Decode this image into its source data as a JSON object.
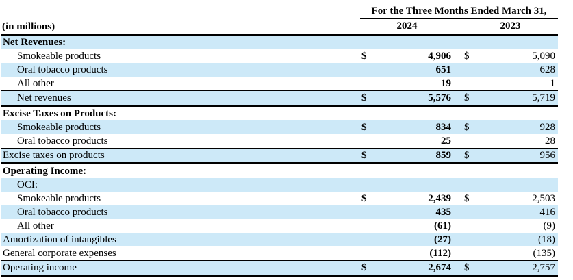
{
  "header": {
    "period_title": "For the Three Months Ended March 31,",
    "unit_label": "(in millions)",
    "year_2024": "2024",
    "year_2023": "2023"
  },
  "currency_symbol": "$",
  "colors": {
    "row_highlight": "#cde9f8",
    "rule": "#000000",
    "background": "#ffffff",
    "text": "#000000"
  },
  "rows": [
    {
      "kind": "section",
      "label": "Net Revenues:",
      "shaded": true,
      "indent": false,
      "dollar": false,
      "value_2024": "",
      "value_2023": ""
    },
    {
      "kind": "data",
      "label": "Smokeable products",
      "shaded": false,
      "indent": true,
      "dollar": true,
      "value_2024": "4,906",
      "value_2023": "5,090"
    },
    {
      "kind": "data",
      "label": "Oral tobacco products",
      "shaded": true,
      "indent": true,
      "dollar": false,
      "value_2024": "651",
      "value_2023": "628"
    },
    {
      "kind": "data",
      "label": "All other",
      "shaded": false,
      "indent": true,
      "dollar": false,
      "value_2024": "19",
      "value_2023": "1"
    },
    {
      "kind": "total",
      "label": "Net revenues",
      "shaded": true,
      "indent": true,
      "dollar": true,
      "value_2024": "5,576",
      "value_2023": "5,719"
    },
    {
      "kind": "section",
      "label": "Excise Taxes on Products:",
      "shaded": false,
      "indent": false,
      "dollar": false,
      "value_2024": "",
      "value_2023": ""
    },
    {
      "kind": "data",
      "label": "Smokeable products",
      "shaded": true,
      "indent": true,
      "dollar": true,
      "value_2024": "834",
      "value_2023": "928"
    },
    {
      "kind": "data",
      "label": "Oral tobacco products",
      "shaded": false,
      "indent": true,
      "dollar": false,
      "value_2024": "25",
      "value_2023": "28"
    },
    {
      "kind": "total",
      "label": "Excise taxes on products",
      "shaded": true,
      "indent": false,
      "dollar": true,
      "value_2024": "859",
      "value_2023": "956"
    },
    {
      "kind": "section",
      "label": "Operating Income:",
      "shaded": false,
      "indent": false,
      "dollar": false,
      "value_2024": "",
      "value_2023": ""
    },
    {
      "kind": "subsection",
      "label": "OCI:",
      "shaded": true,
      "indent": true,
      "dollar": false,
      "value_2024": "",
      "value_2023": ""
    },
    {
      "kind": "data",
      "label": "Smokeable products",
      "shaded": false,
      "indent": true,
      "dollar": true,
      "value_2024": "2,439",
      "value_2023": "2,503"
    },
    {
      "kind": "data",
      "label": "Oral tobacco products",
      "shaded": true,
      "indent": true,
      "dollar": false,
      "value_2024": "435",
      "value_2023": "416"
    },
    {
      "kind": "data",
      "label": "All other",
      "shaded": false,
      "indent": true,
      "dollar": false,
      "value_2024": "(61)",
      "value_2023": "(9)"
    },
    {
      "kind": "data",
      "label": "Amortization of intangibles",
      "shaded": true,
      "indent": false,
      "dollar": false,
      "value_2024": "(27)",
      "value_2023": "(18)"
    },
    {
      "kind": "data",
      "label": "General corporate expenses",
      "shaded": false,
      "indent": false,
      "dollar": false,
      "value_2024": "(112)",
      "value_2023": "(135)"
    },
    {
      "kind": "total",
      "label": "Operating income",
      "shaded": true,
      "indent": false,
      "dollar": true,
      "value_2024": "2,674",
      "value_2023": "2,757"
    }
  ]
}
